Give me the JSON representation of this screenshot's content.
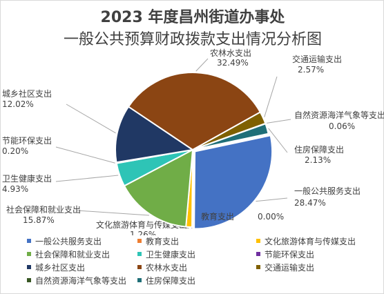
{
  "title_line1": "2023 年度昌州街道办事处",
  "title_line2": "一般公共预算财政拨款支出情况分析图",
  "chart_data": {
    "type": "pie",
    "title": "2023 年度昌州街道办事处 一般公共预算财政拨款支出情况分析图",
    "legend_position": "bottom",
    "slices": [
      {
        "name": "一般公共服务支出",
        "percent": 28.47,
        "label": "28.47%",
        "color": "#4472C4"
      },
      {
        "name": "教育支出",
        "percent": 0.0,
        "label": "0.00%",
        "color": "#ED7D31"
      },
      {
        "name": "文化旅游体育与传媒支出",
        "percent": 1.26,
        "label": "1.26%",
        "color": "#FFC000"
      },
      {
        "name": "社会保障和就业支出",
        "percent": 15.87,
        "label": "15.87%",
        "color": "#70AD47"
      },
      {
        "name": "卫生健康支出",
        "percent": 4.93,
        "label": "4.93%",
        "color": "#2EC4B6"
      },
      {
        "name": "节能环保支出",
        "percent": 0.2,
        "label": "0.20%",
        "color": "#7030A0"
      },
      {
        "name": "城乡社区支出",
        "percent": 12.02,
        "label": "12.02%",
        "color": "#203864"
      },
      {
        "name": "农林水支出",
        "percent": 32.49,
        "label": "32.49%",
        "color": "#8B4513"
      },
      {
        "name": "交通运输支出",
        "percent": 2.57,
        "label": "2.57%",
        "color": "#7F6000"
      },
      {
        "name": "自然资源海洋气象等支出",
        "percent": 0.06,
        "label": "0.06%",
        "color": "#375623"
      },
      {
        "name": "住房保障支出",
        "percent": 2.13,
        "label": "2.13%",
        "color": "#1F6F78"
      }
    ]
  }
}
